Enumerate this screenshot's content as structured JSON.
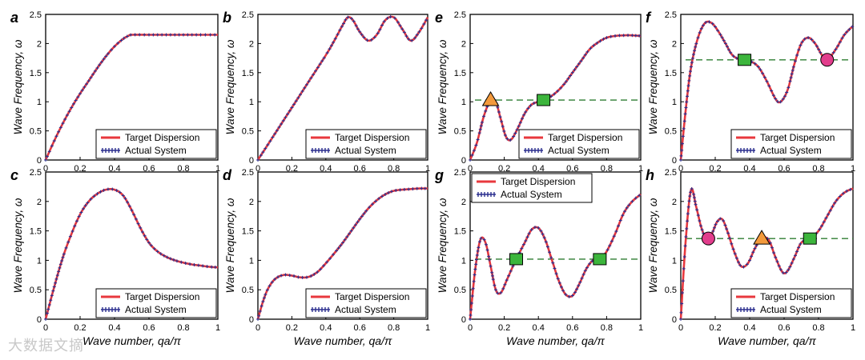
{
  "chart_data": [
    {
      "id": "a",
      "type": "line",
      "panel_label": "a",
      "ylabel": "Wave Frequency, ω",
      "xlabel": "",
      "xlim": [
        0,
        1
      ],
      "ylim": [
        0,
        2.5
      ],
      "xticks": [
        "0",
        "0.2",
        "0.4",
        "0.6",
        "0.8",
        "1"
      ],
      "yticks": [
        "0",
        "0.5",
        "1",
        "1.5",
        "2",
        "2.5"
      ],
      "legend": [
        "Target Dispersion",
        "Actual System"
      ],
      "legend_position": "bottom-right",
      "series": [
        {
          "name": "Target Dispersion",
          "x": [
            0,
            0.05,
            0.1,
            0.15,
            0.2,
            0.25,
            0.3,
            0.35,
            0.4,
            0.45,
            0.48,
            0.5,
            0.6,
            0.7,
            0.8,
            0.9,
            1.0
          ],
          "y": [
            0,
            0.33,
            0.63,
            0.9,
            1.14,
            1.36,
            1.58,
            1.78,
            1.95,
            2.08,
            2.13,
            2.15,
            2.15,
            2.15,
            2.15,
            2.15,
            2.15
          ]
        }
      ],
      "markers": []
    },
    {
      "id": "b",
      "type": "line",
      "panel_label": "b",
      "ylabel": "Wave Frequency, ω",
      "xlabel": "",
      "xlim": [
        0,
        1
      ],
      "ylim": [
        0,
        2.5
      ],
      "xticks": [
        "0",
        "0.2",
        "0.4",
        "0.6",
        "0.8",
        "1"
      ],
      "yticks": [
        "0",
        "0.5",
        "1",
        "1.5",
        "2",
        "2.5"
      ],
      "legend": [
        "Target Dispersion",
        "Actual System"
      ],
      "legend_position": "bottom-right",
      "series": [
        {
          "name": "Target Dispersion",
          "x": [
            0,
            0.1,
            0.2,
            0.3,
            0.4,
            0.45,
            0.5,
            0.53,
            0.56,
            0.6,
            0.65,
            0.7,
            0.75,
            0.8,
            0.85,
            0.9,
            0.95,
            1.0
          ],
          "y": [
            0,
            0.45,
            0.9,
            1.35,
            1.8,
            2.05,
            2.32,
            2.45,
            2.4,
            2.2,
            2.05,
            2.15,
            2.4,
            2.45,
            2.25,
            2.05,
            2.2,
            2.45
          ]
        }
      ],
      "markers": []
    },
    {
      "id": "c",
      "type": "line",
      "panel_label": "c",
      "ylabel": "Wave Frequency, ω",
      "xlabel": "Wave number, qa/π",
      "xlim": [
        0,
        1
      ],
      "ylim": [
        0,
        2.5
      ],
      "xticks": [
        "0",
        "0.2",
        "0.4",
        "0.6",
        "0.8",
        "1"
      ],
      "yticks": [
        "0",
        "0.5",
        "1",
        "1.5",
        "2",
        "2.5"
      ],
      "legend": [
        "Target Dispersion",
        "Actual System"
      ],
      "legend_position": "bottom-right",
      "series": [
        {
          "name": "Target Dispersion",
          "x": [
            0,
            0.05,
            0.1,
            0.15,
            0.2,
            0.25,
            0.3,
            0.35,
            0.4,
            0.45,
            0.5,
            0.55,
            0.6,
            0.65,
            0.7,
            0.75,
            0.8,
            0.85,
            0.9,
            0.95,
            1.0
          ],
          "y": [
            0,
            0.55,
            1.05,
            1.45,
            1.78,
            2.0,
            2.13,
            2.2,
            2.2,
            2.1,
            1.85,
            1.55,
            1.3,
            1.15,
            1.06,
            1.0,
            0.96,
            0.93,
            0.91,
            0.89,
            0.88
          ]
        }
      ],
      "markers": []
    },
    {
      "id": "d",
      "type": "line",
      "panel_label": "d",
      "ylabel": "Wave Frequency, ω",
      "xlabel": "Wave number, qa/π",
      "xlim": [
        0,
        1
      ],
      "ylim": [
        0,
        2.5
      ],
      "xticks": [
        "0",
        "0.2",
        "0.4",
        "0.6",
        "0.8",
        "1"
      ],
      "yticks": [
        "0",
        "0.5",
        "1",
        "1.5",
        "2",
        "2.5"
      ],
      "legend": [
        "Target Dispersion",
        "Actual System"
      ],
      "legend_position": "bottom-right",
      "series": [
        {
          "name": "Target Dispersion",
          "x": [
            0,
            0.03,
            0.06,
            0.1,
            0.15,
            0.2,
            0.25,
            0.3,
            0.35,
            0.4,
            0.45,
            0.5,
            0.55,
            0.6,
            0.65,
            0.7,
            0.75,
            0.8,
            0.85,
            0.9,
            0.95,
            1.0
          ],
          "y": [
            0,
            0.3,
            0.52,
            0.68,
            0.75,
            0.74,
            0.71,
            0.72,
            0.8,
            0.95,
            1.12,
            1.3,
            1.5,
            1.7,
            1.88,
            2.02,
            2.12,
            2.18,
            2.2,
            2.21,
            2.22,
            2.22
          ]
        }
      ],
      "markers": []
    },
    {
      "id": "e",
      "type": "line",
      "panel_label": "e",
      "ylabel": "Wave Frequency, ω",
      "xlabel": "",
      "xlim": [
        0,
        1
      ],
      "ylim": [
        0,
        2.5
      ],
      "xticks": [
        "0",
        "0.2",
        "0.4",
        "0.6",
        "0.8",
        "1"
      ],
      "yticks": [
        "0",
        "0.5",
        "1",
        "1.5",
        "2",
        "2.5"
      ],
      "legend": [
        "Target Dispersion",
        "Actual System"
      ],
      "legend_position": "bottom-right",
      "dashed_level": 1.03,
      "series": [
        {
          "name": "Target Dispersion",
          "x": [
            0,
            0.04,
            0.08,
            0.12,
            0.15,
            0.18,
            0.21,
            0.24,
            0.28,
            0.32,
            0.36,
            0.4,
            0.45,
            0.5,
            0.55,
            0.6,
            0.65,
            0.7,
            0.75,
            0.8,
            0.85,
            0.9,
            0.95,
            1.0
          ],
          "y": [
            0,
            0.3,
            0.75,
            1.03,
            1.0,
            0.7,
            0.4,
            0.35,
            0.55,
            0.8,
            0.95,
            1.0,
            1.05,
            1.15,
            1.3,
            1.5,
            1.7,
            1.9,
            2.02,
            2.1,
            2.13,
            2.14,
            2.14,
            2.13
          ]
        }
      ],
      "markers": [
        {
          "shape": "triangle",
          "x": 0.12,
          "y": 1.03,
          "color": "#f39a3c"
        },
        {
          "shape": "square",
          "x": 0.43,
          "y": 1.03,
          "color": "#3cb53c"
        }
      ]
    },
    {
      "id": "f",
      "type": "line",
      "panel_label": "f",
      "ylabel": "Wave Frequency, ω",
      "xlabel": "",
      "xlim": [
        0,
        1
      ],
      "ylim": [
        0,
        2.5
      ],
      "xticks": [
        "0",
        "0.2",
        "0.4",
        "0.6",
        "0.8",
        "1"
      ],
      "yticks": [
        "0",
        "0.5",
        "1",
        "1.5",
        "2",
        "2.5"
      ],
      "legend": [
        "Target Dispersion",
        "Actual System"
      ],
      "legend_position": "bottom-right",
      "dashed_level": 1.72,
      "series": [
        {
          "name": "Target Dispersion",
          "x": [
            0,
            0.03,
            0.06,
            0.1,
            0.14,
            0.18,
            0.22,
            0.26,
            0.3,
            0.35,
            0.4,
            0.45,
            0.5,
            0.55,
            0.58,
            0.62,
            0.66,
            0.7,
            0.74,
            0.78,
            0.82,
            0.85,
            0.9,
            0.95,
            1.0
          ],
          "y": [
            0,
            0.9,
            1.6,
            2.1,
            2.35,
            2.35,
            2.2,
            2.0,
            1.8,
            1.72,
            1.7,
            1.6,
            1.35,
            1.05,
            1.0,
            1.2,
            1.65,
            2.0,
            2.1,
            2.0,
            1.8,
            1.72,
            1.9,
            2.15,
            2.3
          ]
        }
      ],
      "markers": [
        {
          "shape": "square",
          "x": 0.37,
          "y": 1.72,
          "color": "#3cb53c"
        },
        {
          "shape": "circle",
          "x": 0.85,
          "y": 1.72,
          "color": "#e23d8c"
        }
      ]
    },
    {
      "id": "g",
      "type": "line",
      "panel_label": "g",
      "ylabel": "Wave Frequency, ω",
      "xlabel": "Wave number, qa/π",
      "xlim": [
        0,
        1
      ],
      "ylim": [
        0,
        2.5
      ],
      "xticks": [
        "0",
        "0.2",
        "0.4",
        "0.6",
        "0.8",
        "1"
      ],
      "yticks": [
        "0",
        "0.5",
        "1",
        "1.5",
        "2",
        "2.5"
      ],
      "legend": [
        "Target Dispersion",
        "Actual System"
      ],
      "legend_position": "top-left",
      "dashed_level": 1.02,
      "series": [
        {
          "name": "Target Dispersion",
          "x": [
            0,
            0.03,
            0.06,
            0.09,
            0.12,
            0.15,
            0.18,
            0.22,
            0.27,
            0.32,
            0.36,
            0.4,
            0.44,
            0.48,
            0.52,
            0.56,
            0.6,
            0.64,
            0.68,
            0.72,
            0.76,
            0.8,
            0.85,
            0.9,
            0.95,
            1.0
          ],
          "y": [
            0,
            0.85,
            1.35,
            1.3,
            0.9,
            0.5,
            0.45,
            0.7,
            1.02,
            1.3,
            1.52,
            1.55,
            1.35,
            1.0,
            0.65,
            0.42,
            0.4,
            0.6,
            0.85,
            1.0,
            1.02,
            1.15,
            1.45,
            1.8,
            2.0,
            2.12
          ]
        }
      ],
      "markers": [
        {
          "shape": "square",
          "x": 0.27,
          "y": 1.02,
          "color": "#3cb53c"
        },
        {
          "shape": "square",
          "x": 0.76,
          "y": 1.02,
          "color": "#3cb53c"
        }
      ]
    },
    {
      "id": "h",
      "type": "line",
      "panel_label": "h",
      "ylabel": "Wave Frequency, ω",
      "xlabel": "Wave number, qa/π",
      "xlim": [
        0,
        1
      ],
      "ylim": [
        0,
        2.5
      ],
      "xticks": [
        "0",
        "0.2",
        "0.4",
        "0.6",
        "0.8",
        "1"
      ],
      "yticks": [
        "0",
        "0.5",
        "1",
        "1.5",
        "2",
        "2.5"
      ],
      "legend": [
        "Target Dispersion",
        "Actual System"
      ],
      "legend_position": "bottom-right",
      "dashed_level": 1.37,
      "series": [
        {
          "name": "Target Dispersion",
          "x": [
            0,
            0.03,
            0.06,
            0.09,
            0.12,
            0.15,
            0.18,
            0.21,
            0.24,
            0.27,
            0.31,
            0.35,
            0.39,
            0.43,
            0.47,
            0.51,
            0.55,
            0.59,
            0.62,
            0.66,
            0.7,
            0.75,
            0.8,
            0.85,
            0.9,
            0.95,
            1.0
          ],
          "y": [
            0,
            1.4,
            2.2,
            1.9,
            1.55,
            1.37,
            1.45,
            1.65,
            1.7,
            1.5,
            1.15,
            0.9,
            0.95,
            1.2,
            1.37,
            1.35,
            1.05,
            0.8,
            0.82,
            1.05,
            1.3,
            1.37,
            1.5,
            1.75,
            2.0,
            2.15,
            2.22
          ]
        }
      ],
      "markers": [
        {
          "shape": "circle",
          "x": 0.16,
          "y": 1.37,
          "color": "#e23d8c"
        },
        {
          "shape": "triangle",
          "x": 0.47,
          "y": 1.37,
          "color": "#f39a3c"
        },
        {
          "shape": "square",
          "x": 0.75,
          "y": 1.37,
          "color": "#3cb53c"
        }
      ]
    }
  ],
  "watermark": "大数据文摘",
  "colors": {
    "target": "#e8383d",
    "actual": "#2b2f8f",
    "dash": "#2e7d32"
  }
}
